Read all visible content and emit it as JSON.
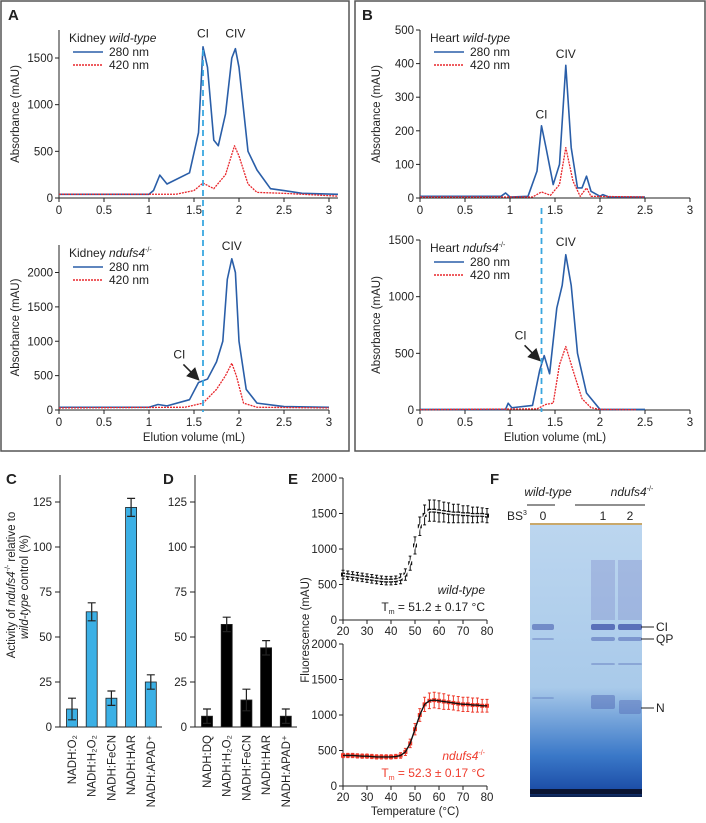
{
  "colors": {
    "blue280": "#2a5ea8",
    "red420": "#e8262b",
    "dashed": "#3aa7e0",
    "barC": "#3cb0e5",
    "barD": "#000000",
    "wtMarker": "#111111",
    "mutMarker": "#ef3b2c",
    "mutText": "#ef3b2c"
  },
  "panels": {
    "A": "A",
    "B": "B",
    "C": "C",
    "D": "D",
    "E": "E",
    "F": "F"
  },
  "chart_data": [
    {
      "id": "A-top",
      "type": "line",
      "panel": "A",
      "title_prefix": "Kidney ",
      "title_italic": "wild-type",
      "title_sup": "",
      "ylabel": "Absorbance (mAU)",
      "xlim": [
        0,
        3.1
      ],
      "ylim": [
        0,
        1800
      ],
      "xticks": [
        0,
        0.5,
        1,
        1.5,
        2,
        2.5,
        3
      ],
      "yticks": [
        0,
        500,
        1000,
        1500
      ],
      "marker_x": 1.6,
      "peaks": [
        {
          "text": "CI",
          "x": 1.6,
          "y": 1700
        },
        {
          "text": "CIV",
          "x": 1.96,
          "y": 1700
        }
      ],
      "series": [
        {
          "name": "280 nm",
          "points": [
            [
              0,
              40
            ],
            [
              1,
              40
            ],
            [
              1.05,
              80
            ],
            [
              1.12,
              245
            ],
            [
              1.2,
              150
            ],
            [
              1.45,
              270
            ],
            [
              1.55,
              700
            ],
            [
              1.6,
              1620
            ],
            [
              1.65,
              1400
            ],
            [
              1.72,
              620
            ],
            [
              1.77,
              560
            ],
            [
              1.85,
              900
            ],
            [
              1.92,
              1500
            ],
            [
              1.96,
              1600
            ],
            [
              2.0,
              1400
            ],
            [
              2.1,
              500
            ],
            [
              2.2,
              300
            ],
            [
              2.35,
              100
            ],
            [
              2.5,
              80
            ],
            [
              2.7,
              50
            ],
            [
              3.1,
              40
            ]
          ]
        },
        {
          "name": "420 nm",
          "points": [
            [
              0,
              40
            ],
            [
              1,
              40
            ],
            [
              1.3,
              40
            ],
            [
              1.5,
              80
            ],
            [
              1.6,
              160
            ],
            [
              1.72,
              100
            ],
            [
              1.85,
              250
            ],
            [
              1.95,
              560
            ],
            [
              2.0,
              450
            ],
            [
              2.1,
              150
            ],
            [
              2.2,
              60
            ],
            [
              2.5,
              50
            ],
            [
              3.1,
              20
            ]
          ]
        }
      ]
    },
    {
      "id": "A-bottom",
      "type": "line",
      "panel": "A",
      "title_prefix": "Kidney ",
      "title_italic": "ndufs4",
      "title_sup": "-/-",
      "ylabel": "Absorbance (mAU)",
      "xlabel": "Elution volume (mL)",
      "xlim": [
        0,
        3
      ],
      "ylim": [
        0,
        2400
      ],
      "xticks": [
        0,
        0.5,
        1,
        1.5,
        2,
        2.5,
        3
      ],
      "yticks": [
        0,
        500,
        1000,
        1500,
        2000
      ],
      "marker_x": 1.6,
      "peaks": [
        {
          "text": "CIV",
          "x": 1.92,
          "y": 2300
        }
      ],
      "arrow": {
        "text": "CI",
        "x": 1.56,
        "y": 430
      },
      "series": [
        {
          "name": "280 nm",
          "points": [
            [
              0,
              40
            ],
            [
              1,
              40
            ],
            [
              1.1,
              80
            ],
            [
              1.2,
              60
            ],
            [
              1.45,
              150
            ],
            [
              1.55,
              400
            ],
            [
              1.65,
              450
            ],
            [
              1.75,
              700
            ],
            [
              1.82,
              1000
            ],
            [
              1.87,
              1900
            ],
            [
              1.92,
              2200
            ],
            [
              1.96,
              2000
            ],
            [
              2.0,
              1000
            ],
            [
              2.08,
              300
            ],
            [
              2.2,
              100
            ],
            [
              2.5,
              50
            ],
            [
              3,
              40
            ]
          ]
        },
        {
          "name": "420 nm",
          "points": [
            [
              0,
              30
            ],
            [
              1.4,
              40
            ],
            [
              1.6,
              100
            ],
            [
              1.75,
              300
            ],
            [
              1.85,
              500
            ],
            [
              1.92,
              680
            ],
            [
              1.97,
              500
            ],
            [
              2.05,
              100
            ],
            [
              2.2,
              40
            ],
            [
              3,
              30
            ]
          ]
        }
      ]
    },
    {
      "id": "B-top",
      "type": "line",
      "panel": "B",
      "title_prefix": "Heart ",
      "title_italic": "wild-type",
      "title_sup": "",
      "ylabel": "Absorbance (mAU)",
      "xlim": [
        0,
        3
      ],
      "ylim": [
        0,
        500
      ],
      "xticks": [
        0,
        0.5,
        1,
        1.5,
        2,
        2.5,
        3
      ],
      "yticks": [
        0,
        100,
        200,
        300,
        400,
        500
      ],
      "marker_x": 1.35,
      "peaks": [
        {
          "text": "CI",
          "x": 1.35,
          "y": 230
        },
        {
          "text": "CIV",
          "x": 1.62,
          "y": 410
        }
      ],
      "series": [
        {
          "name": "280 nm",
          "points": [
            [
              0,
              5
            ],
            [
              0.9,
              5
            ],
            [
              0.95,
              15
            ],
            [
              1.0,
              3
            ],
            [
              1.2,
              5
            ],
            [
              1.3,
              80
            ],
            [
              1.35,
              215
            ],
            [
              1.4,
              150
            ],
            [
              1.48,
              40
            ],
            [
              1.55,
              100
            ],
            [
              1.62,
              395
            ],
            [
              1.68,
              150
            ],
            [
              1.75,
              30
            ],
            [
              1.8,
              30
            ],
            [
              1.85,
              65
            ],
            [
              1.9,
              20
            ],
            [
              2.0,
              5
            ],
            [
              2.03,
              10
            ],
            [
              2.1,
              3
            ],
            [
              2.5,
              3
            ]
          ]
        },
        {
          "name": "420 nm",
          "points": [
            [
              0,
              3
            ],
            [
              1.25,
              3
            ],
            [
              1.35,
              18
            ],
            [
              1.45,
              8
            ],
            [
              1.55,
              40
            ],
            [
              1.62,
              150
            ],
            [
              1.7,
              50
            ],
            [
              1.78,
              5
            ],
            [
              1.85,
              30
            ],
            [
              1.9,
              5
            ],
            [
              2.5,
              3
            ]
          ]
        }
      ]
    },
    {
      "id": "B-bottom",
      "type": "line",
      "panel": "B",
      "title_prefix": "Heart ",
      "title_italic": "ndufs4",
      "title_sup": "-/-",
      "ylabel": "Absorbance (mAU)",
      "xlabel": "Elution volume (mL)",
      "xlim": [
        0,
        3
      ],
      "ylim": [
        0,
        1500
      ],
      "xticks": [
        0,
        0.5,
        1,
        1.5,
        2,
        2.5,
        3
      ],
      "yticks": [
        0,
        500,
        1000,
        1500
      ],
      "marker_x": 1.35,
      "peaks": [
        {
          "text": "CIV",
          "x": 1.62,
          "y": 1430
        }
      ],
      "arrow": {
        "text": "CI",
        "x": 1.34,
        "y": 430
      },
      "series": [
        {
          "name": "280 nm",
          "points": [
            [
              0,
              5
            ],
            [
              0.95,
              5
            ],
            [
              0.98,
              60
            ],
            [
              1.02,
              20
            ],
            [
              1.25,
              40
            ],
            [
              1.33,
              350
            ],
            [
              1.38,
              480
            ],
            [
              1.44,
              320
            ],
            [
              1.52,
              900
            ],
            [
              1.58,
              1100
            ],
            [
              1.62,
              1370
            ],
            [
              1.68,
              1100
            ],
            [
              1.75,
              500
            ],
            [
              1.85,
              150
            ],
            [
              2.0,
              5
            ],
            [
              2.5,
              5
            ]
          ]
        },
        {
          "name": "420 nm",
          "points": [
            [
              0,
              3
            ],
            [
              1.3,
              10
            ],
            [
              1.4,
              50
            ],
            [
              1.48,
              60
            ],
            [
              1.55,
              400
            ],
            [
              1.62,
              560
            ],
            [
              1.7,
              350
            ],
            [
              1.8,
              100
            ],
            [
              1.9,
              20
            ],
            [
              2.0,
              5
            ],
            [
              2.4,
              3
            ]
          ]
        }
      ]
    },
    {
      "id": "C",
      "type": "bar",
      "panel": "C",
      "ylabel_line1_prefix": "Activity of ",
      "ylabel_line1_italic": "ndufs4",
      "ylabel_line1_sup": "-/-",
      "ylabel_line1_suffix": " relative to",
      "ylabel_line2_italic": "wild-type",
      "ylabel_line2_suffix": " control (%)",
      "ylim": [
        0,
        140
      ],
      "yticks": [
        0,
        25,
        50,
        75,
        100,
        125
      ],
      "categories": [
        "NADH:O₂",
        "NADH:H₂O₂",
        "NADH:FeCN",
        "NADH:HAR",
        "NADH:APAD⁺"
      ],
      "values": [
        10,
        64,
        16,
        122,
        25
      ],
      "errors": [
        6,
        5,
        4,
        5,
        4
      ]
    },
    {
      "id": "D",
      "type": "bar",
      "panel": "D",
      "ylim": [
        0,
        140
      ],
      "yticks": [
        0,
        25,
        50,
        75,
        100,
        125
      ],
      "categories": [
        "NADH:DQ",
        "NADH:H₂O₂",
        "NADH:FeCN",
        "NADH:HAR",
        "NADH:APAD⁺"
      ],
      "values": [
        6,
        57,
        15,
        44,
        6
      ],
      "errors": [
        4,
        4,
        6,
        4,
        4
      ]
    },
    {
      "id": "E-top",
      "type": "scatter",
      "panel": "E",
      "ylabel": "Fluorescence (mAU)",
      "xlim": [
        20,
        80
      ],
      "ylim": [
        0,
        2000
      ],
      "xticks": [
        20,
        30,
        40,
        50,
        60,
        70,
        80
      ],
      "yticks": [
        0,
        500,
        1000,
        1500,
        2000
      ],
      "label_italic": "wild-type",
      "tm_text": "= 51.2 ± 0.17 °C",
      "tm_symbol": "T",
      "tm_sub": "m",
      "x": [
        20,
        22,
        24,
        26,
        28,
        30,
        32,
        34,
        36,
        38,
        40,
        42,
        44,
        46,
        48,
        50,
        52,
        54,
        56,
        58,
        60,
        62,
        64,
        66,
        68,
        70,
        72,
        74,
        76,
        78,
        80
      ],
      "y": [
        640,
        630,
        620,
        610,
        600,
        590,
        580,
        570,
        560,
        555,
        555,
        560,
        580,
        640,
        800,
        1050,
        1320,
        1480,
        1540,
        1540,
        1530,
        1520,
        1510,
        1500,
        1500,
        1490,
        1490,
        1480,
        1480,
        1480,
        1470
      ],
      "err": [
        60,
        60,
        60,
        60,
        60,
        60,
        60,
        60,
        60,
        60,
        60,
        60,
        70,
        80,
        100,
        120,
        130,
        140,
        150,
        150,
        150,
        140,
        140,
        130,
        130,
        120,
        120,
        110,
        110,
        100,
        100
      ]
    },
    {
      "id": "E-bottom",
      "type": "scatter",
      "panel": "E",
      "ylabel": "Fluorescence (mAU)",
      "xlabel": "Temperature (°C)",
      "xlim": [
        20,
        80
      ],
      "ylim": [
        0,
        2000
      ],
      "xticks": [
        20,
        30,
        40,
        50,
        60,
        70,
        80
      ],
      "yticks": [
        0,
        500,
        1000,
        1500,
        2000
      ],
      "label_italic": "ndufs4",
      "label_sup": "-/-",
      "tm_text": "= 52.3 ± 0.17 °C",
      "tm_symbol": "T",
      "tm_sub": "m",
      "x": [
        20,
        22,
        24,
        26,
        28,
        30,
        32,
        34,
        36,
        38,
        40,
        42,
        44,
        46,
        48,
        50,
        52,
        54,
        56,
        58,
        60,
        62,
        64,
        66,
        68,
        70,
        72,
        74,
        76,
        78,
        80
      ],
      "y": [
        430,
        430,
        430,
        425,
        420,
        420,
        415,
        410,
        410,
        410,
        410,
        415,
        430,
        480,
        600,
        800,
        1000,
        1150,
        1200,
        1210,
        1200,
        1190,
        1180,
        1170,
        1160,
        1150,
        1150,
        1140,
        1140,
        1130,
        1130
      ],
      "err": [
        30,
        30,
        30,
        30,
        30,
        30,
        30,
        30,
        30,
        30,
        30,
        30,
        40,
        50,
        60,
        80,
        90,
        100,
        110,
        110,
        110,
        110,
        100,
        100,
        100,
        100,
        100,
        100,
        100,
        90,
        90
      ]
    }
  ],
  "gel": {
    "group_wt": "wild-type",
    "group_mut_italic": "ndufs4",
    "group_mut_sup": "-/-",
    "bs3": "BS",
    "bs3_sup": "3",
    "lanes": [
      "0",
      "1",
      "2"
    ],
    "bands": [
      "CI",
      "QP",
      "N"
    ]
  }
}
